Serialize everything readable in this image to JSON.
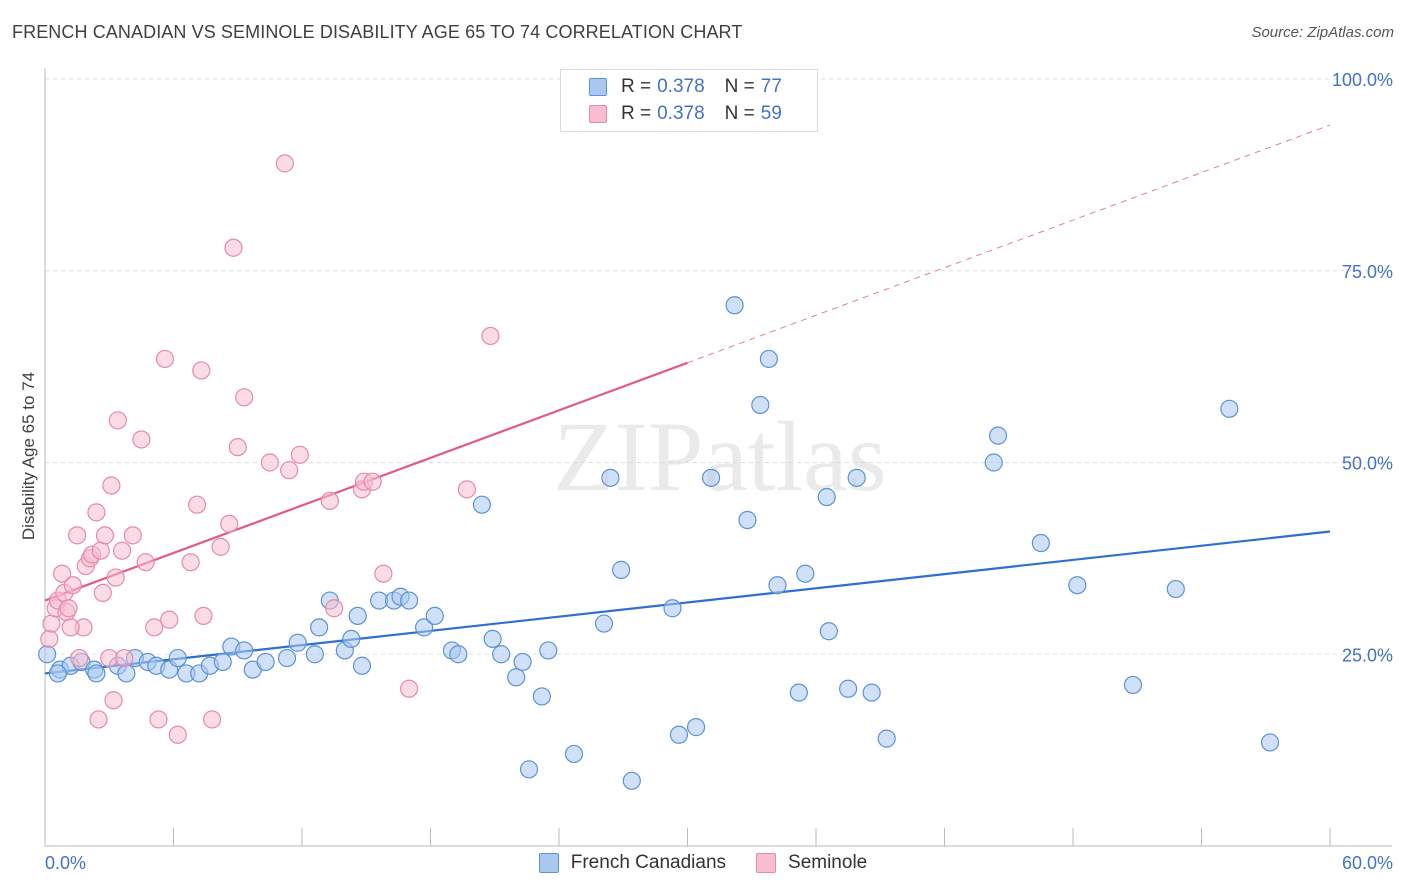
{
  "title": "FRENCH CANADIAN VS SEMINOLE DISABILITY AGE 65 TO 74 CORRELATION CHART",
  "source": "Source: ZipAtlas.com",
  "watermark": "ZIPatlas",
  "legend": {
    "rows": [
      {
        "r_label": "R = ",
        "r_value": "0.378",
        "n_label": "N = ",
        "n_value": "77"
      },
      {
        "r_label": "R = ",
        "r_value": "0.378",
        "n_label": "N = ",
        "n_value": "59"
      }
    ]
  },
  "bottom_legend": [
    "French Canadians",
    "Seminole"
  ],
  "colors": {
    "blue_fill": "#aac8f0",
    "blue_stroke": "#5b93d6",
    "blue_line": "#2f6fcf",
    "pink_fill": "#f7bdd0",
    "pink_stroke": "#e68aa8",
    "pink_line": "#e05a8a",
    "axis_label": "#4472c4",
    "grid": "#dddddd"
  },
  "chart_data": {
    "type": "scatter",
    "title": "FRENCH CANADIAN VS SEMINOLE DISABILITY AGE 65 TO 74 CORRELATION CHART",
    "xlabel": "",
    "ylabel": "Disability Age 65 to 74",
    "xlim": [
      0,
      60
    ],
    "ylim": [
      0,
      100
    ],
    "x_tick_labels": [
      "0.0%",
      "60.0%"
    ],
    "y_tick_labels": [
      "25.0%",
      "50.0%",
      "75.0%",
      "100.0%"
    ],
    "y_ticks": [
      25,
      50,
      75,
      100
    ],
    "grid": true,
    "legend_position": "top-center",
    "series": [
      {
        "name": "French Canadians",
        "points": [
          [
            0.1,
            25
          ],
          [
            0.7,
            23
          ],
          [
            1.2,
            23.5
          ],
          [
            1.7,
            24
          ],
          [
            2.3,
            23
          ],
          [
            3.4,
            23.5
          ],
          [
            2.4,
            22.5
          ],
          [
            3.8,
            22.5
          ],
          [
            4.2,
            24.5
          ],
          [
            4.8,
            24
          ],
          [
            5.2,
            23.5
          ],
          [
            5.8,
            23
          ],
          [
            6.2,
            24.5
          ],
          [
            6.6,
            22.5
          ],
          [
            7.2,
            22.5
          ],
          [
            7.7,
            23.5
          ],
          [
            8.3,
            24
          ],
          [
            8.7,
            26
          ],
          [
            9.3,
            25.5
          ],
          [
            9.7,
            23
          ],
          [
            10.3,
            24
          ],
          [
            11.3,
            24.5
          ],
          [
            11.8,
            26.5
          ],
          [
            12.6,
            25
          ],
          [
            12.8,
            28.5
          ],
          [
            13.3,
            32
          ],
          [
            14.0,
            25.5
          ],
          [
            14.3,
            27
          ],
          [
            14.6,
            30
          ],
          [
            14.8,
            23.5
          ],
          [
            15.6,
            32
          ],
          [
            16.3,
            32
          ],
          [
            16.6,
            32.5
          ],
          [
            17.0,
            32
          ],
          [
            17.7,
            28.5
          ],
          [
            18.2,
            30
          ],
          [
            19.0,
            25.5
          ],
          [
            19.3,
            25
          ],
          [
            20.4,
            44.5
          ],
          [
            20.9,
            27
          ],
          [
            21.3,
            25
          ],
          [
            22.0,
            22
          ],
          [
            22.3,
            24
          ],
          [
            22.6,
            10
          ],
          [
            23.2,
            19.5
          ],
          [
            23.5,
            25.5
          ],
          [
            24.7,
            12
          ],
          [
            26.1,
            29
          ],
          [
            26.4,
            48
          ],
          [
            26.9,
            36
          ],
          [
            27.4,
            8.5
          ],
          [
            29.3,
            31
          ],
          [
            29.6,
            14.5
          ],
          [
            30.4,
            15.5
          ],
          [
            31.1,
            48
          ],
          [
            32.2,
            70.5
          ],
          [
            32.8,
            42.5
          ],
          [
            33.4,
            57.5
          ],
          [
            33.8,
            63.5
          ],
          [
            34.2,
            34
          ],
          [
            35.2,
            20
          ],
          [
            35.5,
            35.5
          ],
          [
            36.5,
            45.5
          ],
          [
            36.6,
            28
          ],
          [
            37.5,
            20.5
          ],
          [
            37.9,
            48
          ],
          [
            38.6,
            20
          ],
          [
            39.3,
            14
          ],
          [
            44.3,
            50
          ],
          [
            44.5,
            53.5
          ],
          [
            46.5,
            39.5
          ],
          [
            48.2,
            34
          ],
          [
            50.8,
            21
          ],
          [
            52.8,
            33.5
          ],
          [
            55.3,
            57
          ],
          [
            57.2,
            13.5
          ],
          [
            0.6,
            22.5
          ]
        ]
      },
      {
        "name": "Seminole",
        "points": [
          [
            0.2,
            27
          ],
          [
            0.3,
            29
          ],
          [
            0.5,
            31
          ],
          [
            0.6,
            32
          ],
          [
            0.8,
            35.5
          ],
          [
            0.9,
            33
          ],
          [
            1.0,
            30.5
          ],
          [
            1.1,
            31
          ],
          [
            1.3,
            34
          ],
          [
            1.5,
            40.5
          ],
          [
            1.6,
            24.5
          ],
          [
            1.8,
            28.5
          ],
          [
            1.9,
            36.5
          ],
          [
            2.1,
            37.5
          ],
          [
            2.2,
            38
          ],
          [
            2.4,
            43.5
          ],
          [
            2.5,
            16.5
          ],
          [
            2.6,
            38.5
          ],
          [
            2.8,
            40.5
          ],
          [
            3.0,
            24.5
          ],
          [
            3.1,
            47
          ],
          [
            3.2,
            19
          ],
          [
            3.3,
            35
          ],
          [
            3.4,
            55.5
          ],
          [
            3.6,
            38.5
          ],
          [
            3.7,
            24.5
          ],
          [
            4.1,
            40.5
          ],
          [
            4.5,
            53
          ],
          [
            4.7,
            37
          ],
          [
            5.1,
            28.5
          ],
          [
            5.3,
            16.5
          ],
          [
            5.6,
            63.5
          ],
          [
            5.8,
            29.5
          ],
          [
            6.2,
            14.5
          ],
          [
            6.8,
            37
          ],
          [
            7.1,
            44.5
          ],
          [
            7.3,
            62
          ],
          [
            7.4,
            30
          ],
          [
            7.8,
            16.5
          ],
          [
            8.2,
            39
          ],
          [
            8.6,
            42
          ],
          [
            8.8,
            78
          ],
          [
            9.0,
            52
          ],
          [
            9.3,
            58.5
          ],
          [
            10.5,
            50
          ],
          [
            11.2,
            89
          ],
          [
            11.4,
            49
          ],
          [
            11.9,
            51
          ],
          [
            13.3,
            45
          ],
          [
            13.5,
            31
          ],
          [
            14.8,
            46.5
          ],
          [
            14.9,
            47.5
          ],
          [
            15.3,
            47.5
          ],
          [
            15.8,
            35.5
          ],
          [
            17.0,
            20.5
          ],
          [
            19.7,
            46.5
          ],
          [
            20.8,
            66.5
          ],
          [
            2.7,
            33
          ],
          [
            1.2,
            28.5
          ]
        ]
      }
    ],
    "trendlines": [
      {
        "series": "French Canadians",
        "x": [
          0,
          60
        ],
        "y": [
          22.5,
          41
        ],
        "style": "solid"
      },
      {
        "series": "Seminole",
        "x": [
          0,
          30
        ],
        "y": [
          32,
          63
        ],
        "style": "solid"
      },
      {
        "series": "Seminole",
        "x": [
          30,
          60
        ],
        "y": [
          63,
          94
        ],
        "style": "dashed"
      }
    ]
  }
}
